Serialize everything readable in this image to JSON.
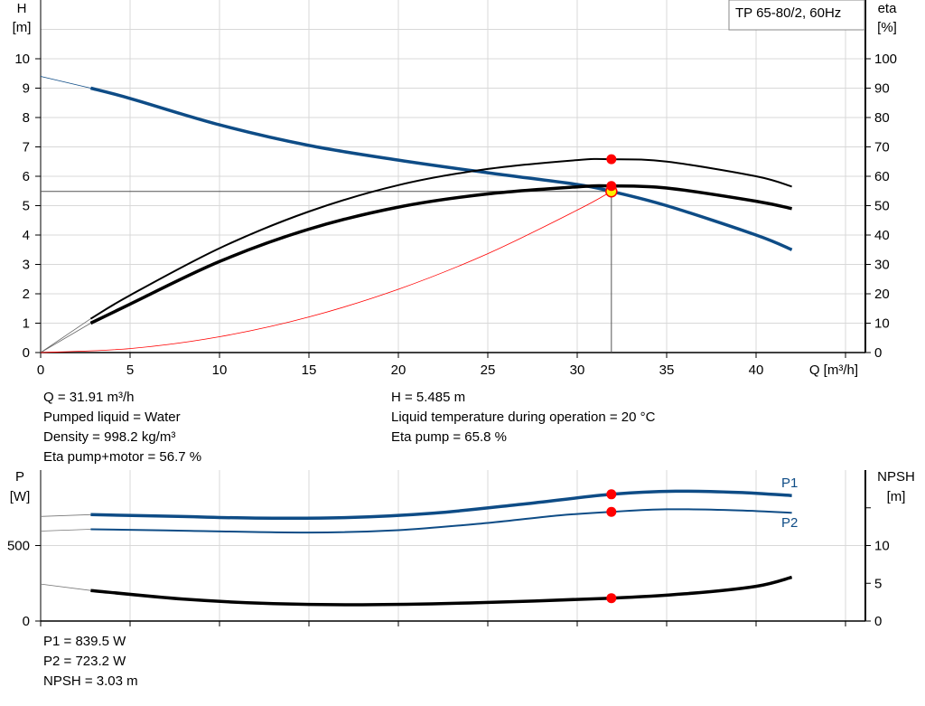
{
  "chart_data": [
    {
      "type": "line",
      "title": "TP 65-80/2, 60Hz",
      "xlabel": "Q [m³/h]",
      "ylabel": "H\n[m]",
      "ylabel_line1": "H",
      "ylabel_line2": "[m]",
      "y2label_line1": "eta",
      "y2label_line2": "[%]",
      "xlim": [
        0,
        46
      ],
      "ylim": [
        0,
        12
      ],
      "y2lim": [
        0,
        120
      ],
      "xticks": [
        0,
        5,
        10,
        15,
        20,
        25,
        30,
        35,
        40
      ],
      "yticks": [
        0,
        1,
        2,
        3,
        4,
        5,
        6,
        7,
        8,
        9,
        10
      ],
      "y2ticks": [
        0,
        10,
        20,
        30,
        40,
        50,
        60,
        70,
        80,
        90,
        100
      ],
      "grid": true,
      "series": [
        {
          "key": "qh",
          "axis": "left",
          "color": "#0e4c86",
          "points": [
            [
              0,
              9.4
            ],
            [
              2.8,
              9.0
            ],
            [
              5,
              8.65
            ],
            [
              10,
              7.75
            ],
            [
              15,
              7.05
            ],
            [
              20,
              6.55
            ],
            [
              25,
              6.12
            ],
            [
              30,
              5.72
            ],
            [
              31.91,
              5.485
            ],
            [
              35,
              5.0
            ],
            [
              40,
              4.0
            ],
            [
              42,
              3.5
            ]
          ]
        },
        {
          "key": "eta_pump",
          "axis": "right",
          "color": "#000000",
          "points": [
            [
              0,
              0
            ],
            [
              2.8,
              11.5
            ],
            [
              5,
              19.5
            ],
            [
              10,
              35.5
            ],
            [
              15,
              48
            ],
            [
              20,
              57
            ],
            [
              25,
              62.5
            ],
            [
              30,
              65.5
            ],
            [
              31.91,
              65.8
            ],
            [
              35,
              65
            ],
            [
              40,
              60
            ],
            [
              42,
              56.5
            ]
          ]
        },
        {
          "key": "eta_total",
          "axis": "right",
          "color": "#000000",
          "points": [
            [
              0,
              0
            ],
            [
              2.8,
              10
            ],
            [
              5,
              16.5
            ],
            [
              10,
              31
            ],
            [
              15,
              42
            ],
            [
              20,
              49.5
            ],
            [
              25,
              54
            ],
            [
              30,
              56.4
            ],
            [
              31.91,
              56.7
            ],
            [
              35,
              56
            ],
            [
              40,
              51.5
            ],
            [
              42,
              49
            ]
          ]
        },
        {
          "key": "system",
          "axis": "left",
          "color": "#ff0000",
          "points": [
            [
              0,
              0
            ],
            [
              5,
              0.135
            ],
            [
              10,
              0.539
            ],
            [
              15,
              1.212
            ],
            [
              20,
              2.155
            ],
            [
              25,
              3.366
            ],
            [
              30,
              4.848
            ],
            [
              31.91,
              5.485
            ]
          ]
        }
      ],
      "duty_point": {
        "q": 31.91,
        "h": 5.485,
        "eta_pump": 65.8,
        "eta_total": 56.7
      }
    },
    {
      "type": "line",
      "xlim": [
        0,
        46
      ],
      "ylabel_line1": "P",
      "ylabel_line2": "[W]",
      "y2label_line1": "NPSH",
      "y2label_line2": "[m]",
      "ylim": [
        0,
        1000
      ],
      "y2lim": [
        0,
        20
      ],
      "yticks": [
        0,
        500
      ],
      "y2ticks": [
        0,
        5,
        10,
        15
      ],
      "y2ticklabels": [
        "0",
        "5",
        "10",
        ""
      ],
      "grid": true,
      "series": [
        {
          "key": "p1",
          "name": "P1",
          "axis": "left",
          "color": "#0e4c86",
          "points": [
            [
              0,
              693
            ],
            [
              2.8,
              705
            ],
            [
              8,
              692
            ],
            [
              12,
              682
            ],
            [
              17,
              685
            ],
            [
              22,
              715
            ],
            [
              27,
              775
            ],
            [
              31.91,
              839.5
            ],
            [
              35.5,
              860
            ],
            [
              39,
              852
            ],
            [
              42,
              831
            ]
          ]
        },
        {
          "key": "p2",
          "name": "P2",
          "axis": "left",
          "color": "#0e4c86",
          "points": [
            [
              0,
              596
            ],
            [
              2.8,
              608
            ],
            [
              8,
              598
            ],
            [
              15,
              586
            ],
            [
              20,
              602
            ],
            [
              25,
              650
            ],
            [
              29,
              700
            ],
            [
              31.91,
              723.2
            ],
            [
              35,
              740
            ],
            [
              39,
              733
            ],
            [
              42,
              717
            ]
          ]
        },
        {
          "key": "npsh",
          "axis": "right",
          "color": "#000000",
          "points": [
            [
              0,
              4.9
            ],
            [
              2.8,
              4.05
            ],
            [
              8,
              2.9
            ],
            [
              13,
              2.3
            ],
            [
              18,
              2.15
            ],
            [
              24,
              2.4
            ],
            [
              31.91,
              3.03
            ],
            [
              36,
              3.6
            ],
            [
              40,
              4.6
            ],
            [
              42,
              5.8
            ]
          ]
        }
      ],
      "duty_point": {
        "q": 31.91,
        "p1": 839.5,
        "p2": 723.2,
        "npsh": 3.03
      }
    }
  ],
  "info": {
    "q": "Q = 31.91 m³/h",
    "liquid": "Pumped liquid = Water",
    "density": "Density = 998.2 kg/m³",
    "eta_total": "Eta pump+motor = 56.7 %",
    "h": "H = 5.485 m",
    "temp": "Liquid temperature during operation = 20 °C",
    "eta_pump": "Eta pump = 65.8 %",
    "p1": "P1 = 839.5 W",
    "p2": "P2 = 723.2 W",
    "npsh": "NPSH = 3.03 m"
  }
}
